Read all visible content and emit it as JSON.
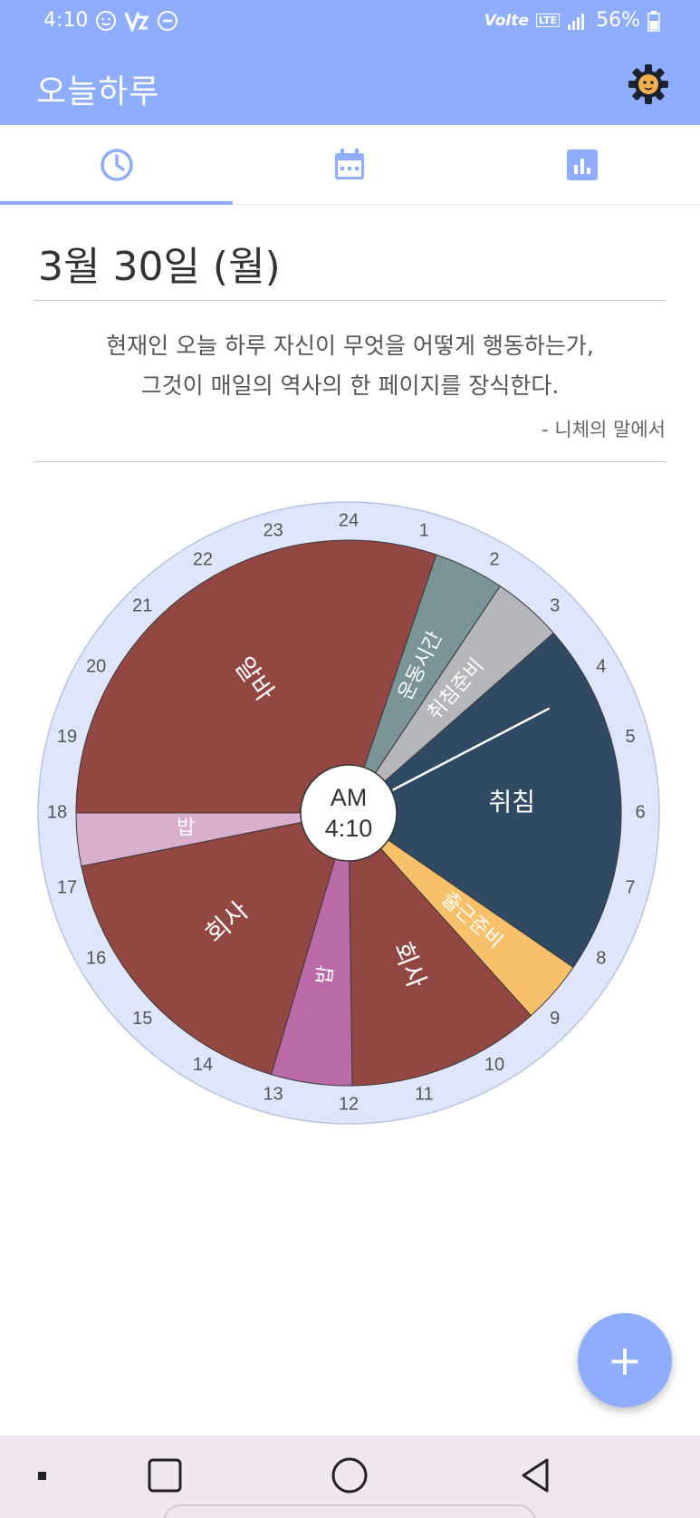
{
  "status_bar": {
    "time": "4:10",
    "network": "Volte",
    "lte": "LTE",
    "battery": "56%"
  },
  "app_bar": {
    "title": "오늘하루",
    "settings_icon": "gear-icon"
  },
  "tabs": [
    {
      "icon": "clock-icon",
      "selected": true
    },
    {
      "icon": "calendar-icon",
      "selected": false
    },
    {
      "icon": "bar-chart-icon",
      "selected": false
    }
  ],
  "date": "3월 30일 (월)",
  "quote": {
    "line1": "현재인 오늘 하루 자신이 무엇을 어떻게 행동하는가,",
    "line2": "그것이 매일의 역사의 한 페이지를 장식한다.",
    "source": "- 니체의 말에서"
  },
  "clock": {
    "hour_labels": [
      "24",
      "1",
      "2",
      "3",
      "4",
      "5",
      "6",
      "7",
      "8",
      "9",
      "10",
      "11",
      "12",
      "13",
      "14",
      "15",
      "16",
      "17",
      "18",
      "19",
      "20",
      "21",
      "22",
      "23"
    ],
    "center_label": {
      "period": "AM",
      "time": "4:10"
    },
    "current_hour": 4.1667,
    "segments": [
      {
        "label": "운동시간",
        "start": 1.25,
        "end": 2.25,
        "color": "#7a9497"
      },
      {
        "label": "취침준비",
        "start": 2.25,
        "end": 3.25,
        "color": "#b4b6b9"
      },
      {
        "label": "취침",
        "start": 3.25,
        "end": 8.3,
        "color": "#2f4a62"
      },
      {
        "label": "출근준비",
        "start": 8.3,
        "end": 9.2,
        "color": "#f8c06a"
      },
      {
        "label": "회사",
        "start": 9.2,
        "end": 11.95,
        "color": "#924742"
      },
      {
        "label": "밥",
        "start": 11.95,
        "end": 13.1,
        "color": "#bb6aa8"
      },
      {
        "label": "회사",
        "start": 13.1,
        "end": 17.25,
        "color": "#924742"
      },
      {
        "label": "밥",
        "start": 17.25,
        "end": 18.0,
        "color": "#d9afcd"
      },
      {
        "label": "알바",
        "start": 18.0,
        "end": 25.25,
        "color": "#924742"
      }
    ]
  },
  "fab": {
    "label": "+"
  },
  "colors": {
    "accent": "#8fadff",
    "ring": "#dfe6fb"
  }
}
